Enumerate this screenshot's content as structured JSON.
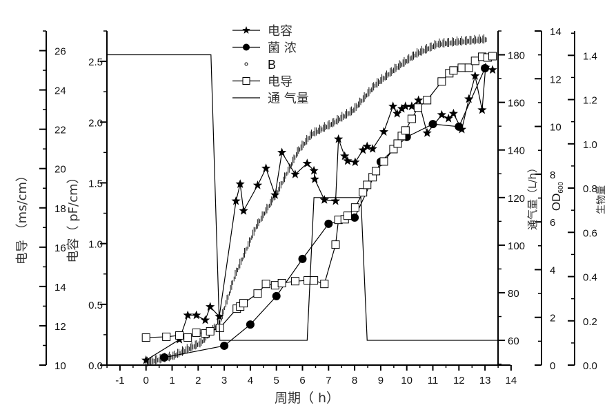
{
  "chart_data": {
    "type": "line",
    "title": "",
    "xlabel": "周期（ h）",
    "xlim": [
      -1.5,
      13.5
    ],
    "xticks": [
      -1,
      0,
      1,
      2,
      3,
      4,
      5,
      6,
      7,
      8,
      9,
      10,
      11,
      12,
      13,
      14
    ],
    "axes": {
      "conductivity": {
        "label": "电导 （ms/cm）",
        "range": [
          10,
          27
        ],
        "ticks": [
          10,
          12,
          14,
          16,
          18,
          20,
          22,
          24,
          26
        ]
      },
      "capacitance": {
        "label": "电容（ pF/cm）",
        "range": [
          0,
          2.75
        ],
        "ticks": [
          "0.0",
          "0.5",
          "1.0",
          "1.5",
          "2.0",
          "2.5"
        ]
      },
      "airflow": {
        "label": "通气量（L/h）",
        "range": [
          49.6,
          190
        ],
        "ticks": [
          60,
          80,
          100,
          120,
          140,
          160,
          180
        ]
      },
      "od": {
        "label": "OD",
        "label_sub": "600",
        "range": [
          0,
          14
        ],
        "ticks": [
          0,
          2,
          4,
          6,
          8,
          10,
          12,
          14
        ]
      },
      "biomass": {
        "label": "生物量",
        "range": [
          0,
          1.51
        ],
        "ticks": [
          "0.0",
          "0.2",
          "0.4",
          "0.6",
          "0.8",
          "1.0",
          "1.2",
          "1.4"
        ]
      }
    },
    "legend_position": "top-center",
    "series": [
      {
        "name": "电容",
        "axis": "capacitance",
        "marker": "star",
        "line": true,
        "x": [
          0,
          1.28,
          1.6,
          1.93,
          2.27,
          2.46,
          2.81,
          3.45,
          3.61,
          3.74,
          4.28,
          4.6,
          4.95,
          5.21,
          5.72,
          6.18,
          6.44,
          6.47,
          6.84,
          7.27,
          7.38,
          7.62,
          7.73,
          8.02,
          8.32,
          8.48,
          8.69,
          9.12,
          9.47,
          9.63,
          9.81,
          9.95,
          10.19,
          10.45,
          10.78,
          11.34,
          11.6,
          11.79,
          12.11,
          12.38,
          12.62,
          12.89,
          13.02,
          13.29
        ],
        "y": [
          0.04,
          0.21,
          0.41,
          0.41,
          0.37,
          0.48,
          0.4,
          1.35,
          1.49,
          1.27,
          1.48,
          1.62,
          1.4,
          1.75,
          1.57,
          1.66,
          1.6,
          1.53,
          1.36,
          1.35,
          1.86,
          1.72,
          1.68,
          1.67,
          1.77,
          1.8,
          1.78,
          1.92,
          2.13,
          2.07,
          2.11,
          2.13,
          2.13,
          2.18,
          1.91,
          2.06,
          2.03,
          2.07,
          1.94,
          2.19,
          2.38,
          2.1,
          2.45,
          2.43
        ]
      },
      {
        "name": "菌 浓",
        "axis": "od",
        "marker": "circle",
        "line": true,
        "x": [
          0.7,
          3,
          4,
          5,
          6,
          7,
          8,
          9,
          10,
          11,
          12,
          13
        ],
        "y": [
          0.32,
          0.81,
          1.7,
          2.89,
          4.45,
          5.92,
          6.18,
          8.52,
          9.56,
          10.1,
          9.99,
          12.44
        ]
      },
      {
        "name": "B",
        "axis": "capacitance",
        "marker": "dot",
        "line": false,
        "x": [
          0,
          1.02,
          2.09,
          2.83,
          3.42,
          4.23,
          5.03,
          5.83,
          6.36,
          7.17,
          7.97,
          8.77,
          9.57,
          10.37,
          11.18,
          11.98,
          13.05
        ],
        "y": [
          0.01,
          0.06,
          0.17,
          0.34,
          0.73,
          1.13,
          1.41,
          1.75,
          1.89,
          1.98,
          2.09,
          2.29,
          2.43,
          2.55,
          2.63,
          2.65,
          2.67
        ]
      },
      {
        "name": "电导",
        "axis": "conductivity",
        "marker": "square",
        "line": true,
        "x": [
          0,
          0.78,
          1.28,
          1.6,
          1.93,
          2.27,
          2.46,
          2.83,
          3.48,
          3.61,
          3.74,
          4.28,
          4.6,
          4.95,
          5.21,
          5.72,
          6.2,
          6.44,
          6.84,
          7.27,
          7.38,
          7.62,
          7.73,
          8.02,
          8.32,
          8.48,
          8.69,
          8.82,
          9.12,
          9.49,
          9.65,
          9.81,
          9.95,
          10.19,
          10.43,
          10.78,
          11.34,
          11.63,
          11.79,
          12.11,
          12.38,
          12.62,
          12.89,
          13.1,
          13.29
        ],
        "y": [
          11.4,
          11.44,
          11.51,
          11.4,
          11.65,
          11.61,
          11.72,
          11.89,
          12.87,
          12.98,
          13.15,
          13.64,
          14.13,
          14.06,
          14.17,
          14.27,
          14.31,
          14.31,
          14.13,
          16.13,
          17.39,
          17.42,
          17.6,
          18.02,
          18.79,
          19.17,
          19.56,
          19.87,
          20.36,
          20.99,
          21.27,
          21.66,
          21.94,
          22.53,
          23.1,
          23.48,
          24.43,
          24.85,
          24.99,
          25.13,
          25.13,
          25.48,
          25.69,
          25.65,
          25.72
        ]
      },
      {
        "name": "通 气量",
        "axis": "airflow",
        "marker": "none",
        "line": true,
        "x": [
          -1.5,
          2.49,
          2.83,
          6.18,
          6.44,
          8.24,
          8.48,
          13.5
        ],
        "y": [
          180,
          180,
          60,
          60,
          120,
          120,
          60,
          60
        ]
      }
    ]
  }
}
